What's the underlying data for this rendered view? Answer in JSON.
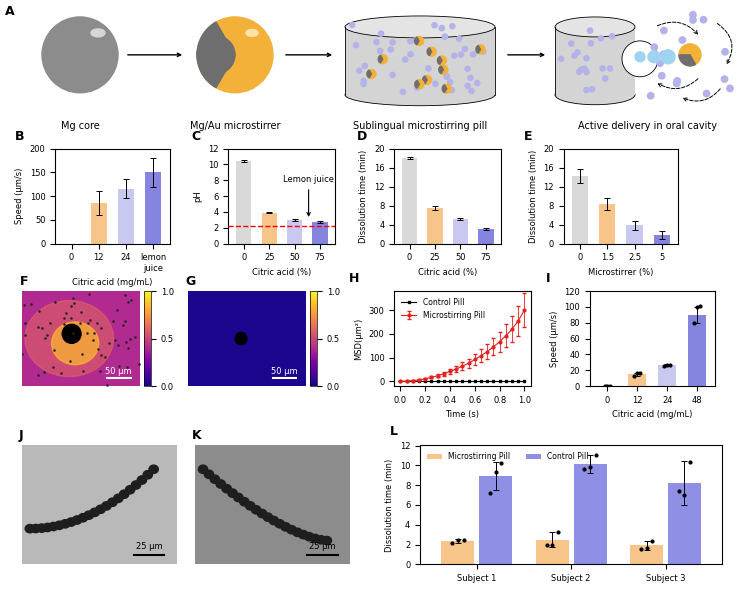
{
  "diagram": {
    "title": "A",
    "steps": [
      "Mg core",
      "Mg/Au microstirrer",
      "Sublingual microstirring pill",
      "Active delivery in oral cavity"
    ]
  },
  "chart_data": [
    {
      "type": "bar",
      "title": "B",
      "categories": [
        "0",
        "12",
        "24",
        "lemon juice"
      ],
      "values": [
        0,
        85,
        115,
        150
      ],
      "errors": [
        0,
        25,
        20,
        30
      ],
      "colors": [
        "#d9d9d9",
        "#f7c58a",
        "#c8c8f0",
        "#8585e0"
      ],
      "xlabel": "Citric acid (mg/mL)",
      "ylabel": "Speed (μm/s)",
      "ylim": [
        0,
        200
      ],
      "yticks": [
        0,
        50,
        100,
        150,
        200
      ]
    },
    {
      "type": "bar",
      "title": "C",
      "categories": [
        "0",
        "25",
        "50",
        "75"
      ],
      "values": [
        10.4,
        3.9,
        3.0,
        2.7
      ],
      "errors": [
        0.1,
        0.1,
        0.1,
        0.1
      ],
      "colors": [
        "#d9d9d9",
        "#f7c58a",
        "#c8c8f0",
        "#8585e0"
      ],
      "xlabel": "Citric acid (%)",
      "ylabel": "pH",
      "reference_value": 2.2,
      "line_style": "dashed",
      "annotation": "Lemon juice",
      "ylim": [
        0,
        12
      ],
      "yticks": [
        0,
        2,
        4,
        6,
        8,
        10,
        12
      ]
    },
    {
      "type": "bar",
      "title": "D",
      "categories": [
        "0",
        "25",
        "50",
        "75"
      ],
      "values": [
        18.0,
        7.5,
        5.2,
        3.0
      ],
      "errors": [
        0.3,
        0.4,
        0.2,
        0.2
      ],
      "colors": [
        "#d9d9d9",
        "#f7c58a",
        "#c8c8f0",
        "#8585e0"
      ],
      "xlabel": "Citric acid (%)",
      "ylabel": "Dissolution time (min)",
      "ylim": [
        0,
        20
      ],
      "yticks": [
        0,
        4,
        8,
        12,
        16,
        20
      ]
    },
    {
      "type": "bar",
      "title": "E",
      "categories": [
        "0",
        "1.5",
        "2.5",
        "5"
      ],
      "values": [
        14.2,
        8.3,
        3.8,
        1.8
      ],
      "errors": [
        1.5,
        1.2,
        1.0,
        0.8
      ],
      "colors": [
        "#d9d9d9",
        "#f7c58a",
        "#c8c8f0",
        "#8585e0"
      ],
      "xlabel": "Microstirrer (%)",
      "ylabel": "Dissolution time (min)",
      "ylim": [
        0,
        20
      ],
      "yticks": [
        0,
        4,
        8,
        12,
        16,
        20
      ]
    },
    {
      "type": "line",
      "title": "H",
      "xlabel": "Time (s)",
      "ylabel": "MSD(μm²)",
      "x": [
        0.0,
        0.05,
        0.1,
        0.15,
        0.2,
        0.25,
        0.3,
        0.35,
        0.4,
        0.45,
        0.5,
        0.55,
        0.6,
        0.65,
        0.7,
        0.75,
        0.8,
        0.85,
        0.9,
        0.95,
        1.0
      ],
      "series": [
        {
          "name": "Control Pill",
          "color": "#000000",
          "marker": "s",
          "line_style": "solid",
          "values": [
            0,
            0,
            0,
            0,
            0,
            0,
            0,
            0,
            0,
            0,
            0,
            0,
            0,
            0,
            0,
            0,
            0,
            0,
            0,
            0,
            0
          ]
        },
        {
          "name": "Microstirring Pill",
          "color": "#e8201c",
          "marker": "o",
          "line_style": "solid",
          "values": [
            0,
            1,
            3,
            6,
            11,
            17,
            24,
            32,
            42,
            52,
            64,
            77,
            92,
            108,
            125,
            145,
            167,
            192,
            220,
            255,
            300
          ],
          "errors": [
            0,
            0.5,
            1,
            2,
            3,
            4,
            6,
            8,
            10,
            13,
            16,
            19,
            23,
            27,
            31,
            36,
            42,
            48,
            55,
            63,
            70
          ]
        }
      ],
      "legend": "upper left",
      "xlim": [
        -0.05,
        1.05
      ],
      "xticks": [
        {
          "value": 0.0,
          "label": "0.0"
        },
        0.2,
        0.4,
        0.6,
        0.8,
        {
          "value": 1.0,
          "label": "1.0"
        }
      ],
      "ylim": [
        -20,
        380
      ],
      "yticks": [
        0,
        100,
        200,
        300
      ]
    },
    {
      "type": "bar",
      "title": "I",
      "categories": [
        "0",
        "12",
        "24",
        "48"
      ],
      "values": [
        0,
        15,
        27,
        90
      ],
      "errors": [
        0,
        2,
        1,
        10
      ],
      "points": [
        [
          0,
          0,
          0
        ],
        [
          13,
          16,
          17
        ],
        [
          26,
          27,
          27
        ],
        [
          80,
          100,
          101
        ]
      ],
      "colors": [
        "#d9d9d9",
        "#f7c58a",
        "#c8c8f0",
        "#8585e0"
      ],
      "xlabel": "Citric acid (mg/mL)",
      "ylabel": "Speed (μm/s)",
      "ylim": [
        0,
        120
      ],
      "yticks": [
        0,
        20,
        40,
        60,
        80,
        100,
        120
      ]
    },
    {
      "type": "bar",
      "title": "L",
      "categories": [
        "Subject 1",
        "Subject 2",
        "Subject 3"
      ],
      "series": [
        {
          "name": "Microstirring Pill",
          "color": "#f7c58a",
          "values": [
            2.4,
            2.5,
            1.9
          ],
          "errors": [
            0.2,
            0.8,
            0.5
          ],
          "points": [
            [
              2.2,
              2.5,
              2.5
            ],
            [
              2.0,
              2.0,
              3.3
            ],
            [
              1.5,
              1.6,
              2.4
            ]
          ]
        },
        {
          "name": "Control Pill",
          "color": "#8f8fe6",
          "values": [
            8.9,
            10.1,
            8.2
          ],
          "errors": [
            1.4,
            0.9,
            2.2
          ],
          "points": [
            [
              7.2,
              9.3,
              10.2
            ],
            [
              9.6,
              9.8,
              11.0
            ],
            [
              7.4,
              7.0,
              10.3
            ]
          ]
        }
      ],
      "ylabel": "Dissolution time (min)",
      "legend": "upper left",
      "ylim": [
        0,
        12
      ],
      "yticks": [
        0,
        2,
        4,
        6,
        8,
        10,
        12
      ]
    }
  ],
  "images": [
    {
      "title": "F",
      "scale_bar": "50 μm",
      "colorbar_lim": [
        0.0,
        1.0
      ],
      "colorbar_ticks": [
        {
          "value": 0.0,
          "label": "0.0"
        },
        {
          "value": 0.5,
          "label": "0.5"
        },
        {
          "value": 1.0,
          "label": "1.0"
        }
      ]
    },
    {
      "title": "G",
      "scale_bar": "50 μm",
      "colorbar_lim": [
        0.0,
        1.0
      ],
      "colorbar_ticks": [
        {
          "value": 0.0,
          "label": "0.0"
        },
        {
          "value": 0.5,
          "label": "0.5"
        },
        {
          "value": 1.0,
          "label": "1.0"
        }
      ]
    },
    {
      "title": "J",
      "scale_bar": "25 μm"
    },
    {
      "title": "K",
      "scale_bar": "25 μm"
    }
  ]
}
